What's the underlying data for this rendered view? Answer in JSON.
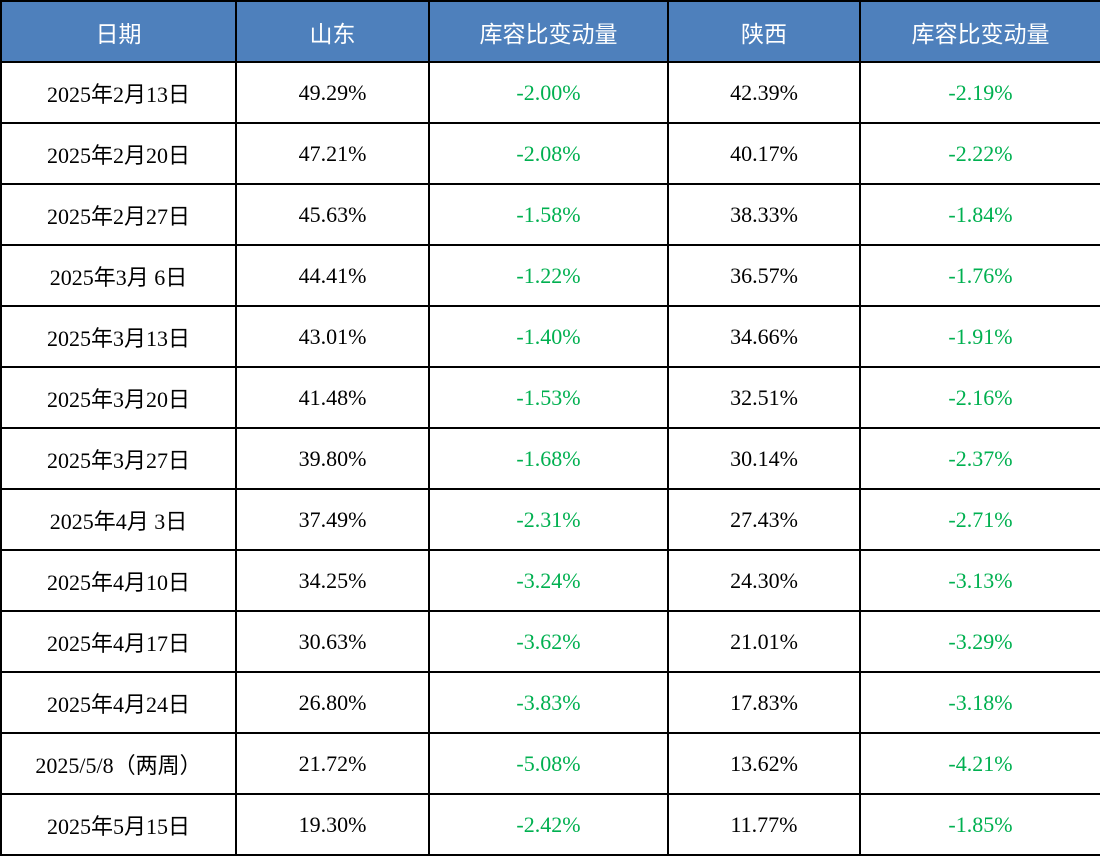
{
  "chart_data": {
    "type": "table",
    "columns": [
      "日期",
      "山东",
      "库容比变动量",
      "陕西",
      "库容比变动量"
    ],
    "rows": [
      [
        "2025年2月13日",
        "49.29%",
        "-2.00%",
        "42.39%",
        "-2.19%"
      ],
      [
        "2025年2月20日",
        "47.21%",
        "-2.08%",
        "40.17%",
        "-2.22%"
      ],
      [
        "2025年2月27日",
        "45.63%",
        "-1.58%",
        "38.33%",
        "-1.84%"
      ],
      [
        "2025年3月 6日",
        "44.41%",
        "-1.22%",
        "36.57%",
        "-1.76%"
      ],
      [
        "2025年3月13日",
        "43.01%",
        "-1.40%",
        "34.66%",
        "-1.91%"
      ],
      [
        "2025年3月20日",
        "41.48%",
        "-1.53%",
        "32.51%",
        "-2.16%"
      ],
      [
        "2025年3月27日",
        "39.80%",
        "-1.68%",
        "30.14%",
        "-2.37%"
      ],
      [
        "2025年4月 3日",
        "37.49%",
        "-2.31%",
        "27.43%",
        "-2.71%"
      ],
      [
        "2025年4月10日",
        "34.25%",
        "-3.24%",
        "24.30%",
        "-3.13%"
      ],
      [
        "2025年4月17日",
        "30.63%",
        "-3.62%",
        "21.01%",
        "-3.29%"
      ],
      [
        "2025年4月24日",
        "26.80%",
        "-3.83%",
        "17.83%",
        "-3.18%"
      ],
      [
        "2025/5/8（两周）",
        "21.72%",
        "-5.08%",
        "13.62%",
        "-4.21%"
      ],
      [
        "2025年5月15日",
        "19.30%",
        "-2.42%",
        "11.77%",
        "-1.85%"
      ]
    ]
  },
  "colors": {
    "header_bg": "#4E80BC",
    "header_text": "#FFFFFF",
    "change_green": "#00B050",
    "body_text": "#000000",
    "border": "#000000",
    "row_bg": "#FFFFFF"
  }
}
